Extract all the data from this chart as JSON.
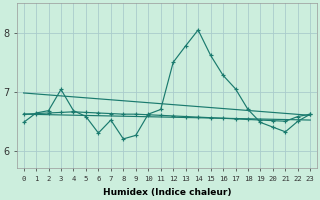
{
  "xlabel": "Humidex (Indice chaleur)",
  "bg_color": "#cceedd",
  "grid_color": "#aacccc",
  "line_color": "#1a7a6e",
  "ylim": [
    5.7,
    8.5
  ],
  "xlim": [
    -0.5,
    23.5
  ],
  "yticks": [
    6,
    7,
    8
  ],
  "xticks": [
    0,
    1,
    2,
    3,
    4,
    5,
    6,
    7,
    8,
    9,
    10,
    11,
    12,
    13,
    14,
    15,
    16,
    17,
    18,
    19,
    20,
    21,
    22,
    23
  ],
  "trend1_x": [
    0,
    23
  ],
  "trend1_y": [
    6.98,
    6.6
  ],
  "trend2_x": [
    0,
    23
  ],
  "trend2_y": [
    6.62,
    6.52
  ],
  "zigzag_x": [
    0,
    1,
    2,
    3,
    4,
    5,
    6,
    7,
    8,
    9,
    10,
    11,
    12,
    13,
    14,
    15,
    16,
    17,
    18,
    19,
    20,
    21,
    22,
    23
  ],
  "zigzag_y": [
    6.48,
    6.64,
    6.68,
    7.04,
    6.68,
    6.58,
    6.3,
    6.52,
    6.2,
    6.26,
    6.62,
    6.7,
    7.5,
    7.78,
    8.05,
    7.62,
    7.28,
    7.05,
    6.7,
    6.48,
    6.4,
    6.32,
    6.5,
    6.62
  ],
  "flat_x": [
    0,
    1,
    2,
    3,
    4,
    5,
    6,
    7,
    8,
    9,
    10,
    11,
    12,
    13,
    14,
    15,
    16,
    17,
    18,
    19,
    20,
    21,
    22,
    23
  ],
  "flat_y": [
    6.62,
    6.63,
    6.64,
    6.65,
    6.66,
    6.65,
    6.64,
    6.63,
    6.62,
    6.62,
    6.61,
    6.6,
    6.59,
    6.58,
    6.57,
    6.56,
    6.55,
    6.54,
    6.53,
    6.52,
    6.51,
    6.5,
    6.58,
    6.62
  ]
}
